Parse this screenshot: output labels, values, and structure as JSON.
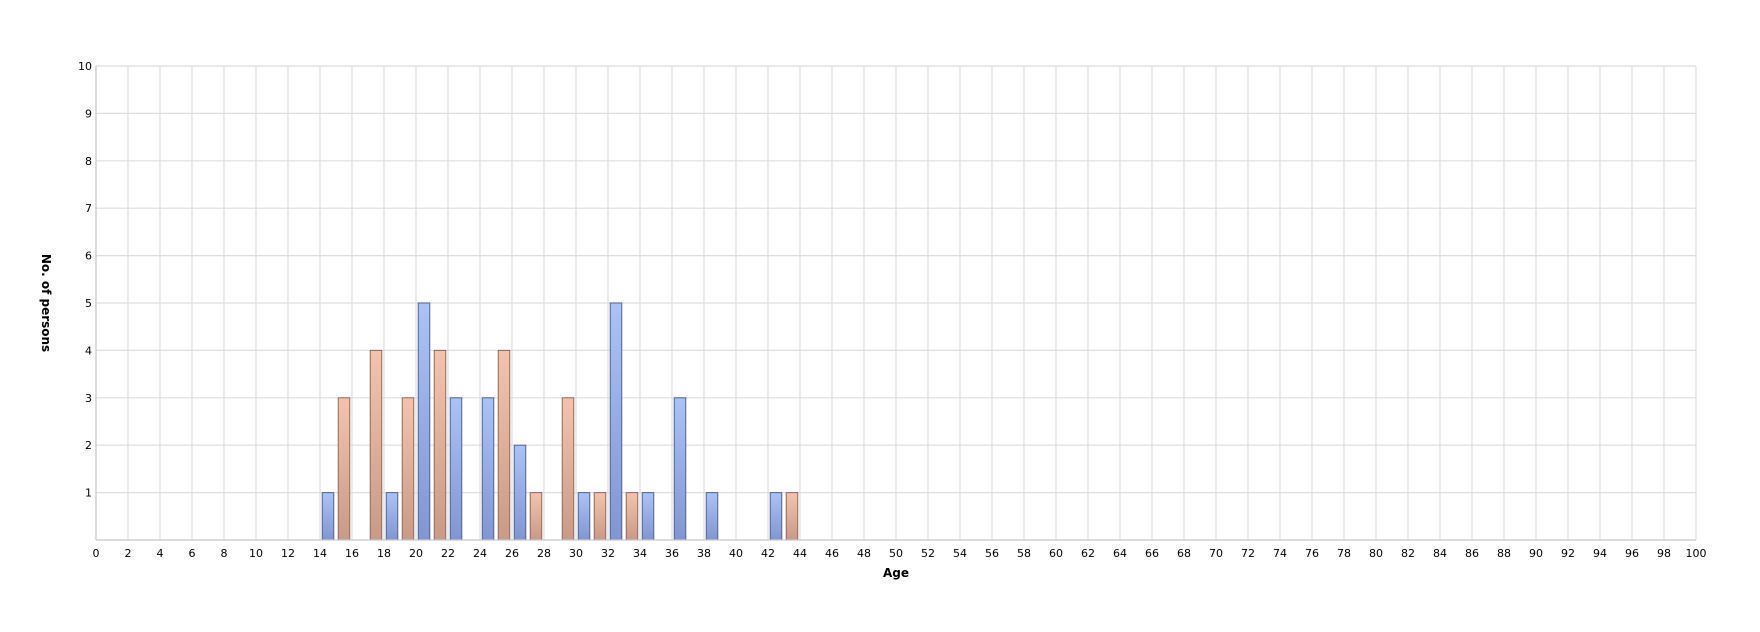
{
  "chart_data": {
    "type": "bar",
    "xlabel": "Age",
    "ylabel": "No. of persons",
    "xlim": [
      0,
      100
    ],
    "ylim": [
      0,
      10
    ],
    "x_ticks": [
      0,
      2,
      4,
      6,
      8,
      10,
      12,
      14,
      16,
      18,
      20,
      22,
      24,
      26,
      28,
      30,
      32,
      34,
      36,
      38,
      40,
      42,
      44,
      46,
      48,
      50,
      52,
      54,
      56,
      58,
      60,
      62,
      64,
      66,
      68,
      70,
      72,
      74,
      76,
      78,
      80,
      82,
      84,
      86,
      88,
      90,
      92,
      94,
      96,
      98,
      100
    ],
    "y_ticks": [
      1,
      2,
      3,
      4,
      5,
      6,
      7,
      8,
      9,
      10
    ],
    "grid": true,
    "series": [
      {
        "color": "#9db5f0",
        "points": [
          [
            14.5,
            1
          ],
          [
            18.5,
            1
          ],
          [
            20.5,
            5
          ],
          [
            22.5,
            3
          ],
          [
            24.5,
            3
          ],
          [
            26.5,
            2
          ],
          [
            30.5,
            1
          ],
          [
            32.5,
            5
          ],
          [
            34.5,
            1
          ],
          [
            36.5,
            3
          ],
          [
            38.5,
            1
          ],
          [
            42.5,
            1
          ]
        ]
      },
      {
        "color": "#eeb19a",
        "points": [
          [
            15.5,
            3
          ],
          [
            17.5,
            4
          ],
          [
            19.5,
            3
          ],
          [
            21.5,
            4
          ],
          [
            25.5,
            4
          ],
          [
            27.5,
            1
          ],
          [
            29.5,
            3
          ],
          [
            31.5,
            1
          ],
          [
            33.5,
            1
          ],
          [
            43.5,
            1
          ]
        ]
      }
    ]
  }
}
